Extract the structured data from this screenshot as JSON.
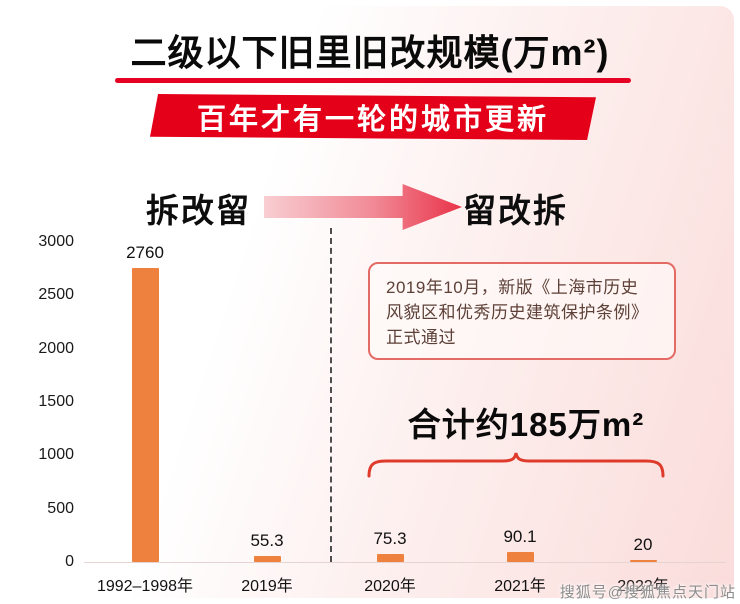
{
  "page": {
    "title": "二级以下旧里旧改规模(万m²)",
    "banner": "百年才有一轮的城市更新",
    "era_left": "拆改留",
    "era_right": "留改拆",
    "note_lines": [
      "2019年10月，新版《上海市历史",
      "风貌区和优秀历史建筑保护条例》",
      "正式通过"
    ],
    "total_label": "合计约185万m²",
    "watermark": "搜狐号@搜狐焦点天门站"
  },
  "colors": {
    "accent_red": "#e60023",
    "banner_red": "#e50019",
    "bar_orange": "#ef813e",
    "note_border": "#e46a66",
    "note_text": "#5d4037",
    "brace_red": "#df3b2c",
    "watermark_gray": "#8d8d8d",
    "divider_gray": "#4d4d4d"
  },
  "chart_data": {
    "type": "bar",
    "categories": [
      "1992–1998年",
      "2019年",
      "2020年",
      "2021年",
      "2022年"
    ],
    "values": [
      2760,
      55.3,
      75.3,
      90.1,
      20
    ],
    "value_labels": [
      "2760",
      "55.3",
      "75.3",
      "90.1",
      "20"
    ],
    "title": "二级以下旧里旧改规模(万m²)",
    "xlabel": "",
    "ylabel": "",
    "ylim": [
      0,
      3000
    ],
    "yticks": [
      0,
      500,
      1000,
      1500,
      2000,
      2500,
      3000
    ],
    "grid": false,
    "legend": false,
    "divider_after_category": "2019年",
    "annotations": [
      "拆改留",
      "留改拆",
      "2019年10月，新版《上海市历史风貌区和优秀历史建筑保护条例》正式通过",
      "合计约185万m²"
    ]
  }
}
